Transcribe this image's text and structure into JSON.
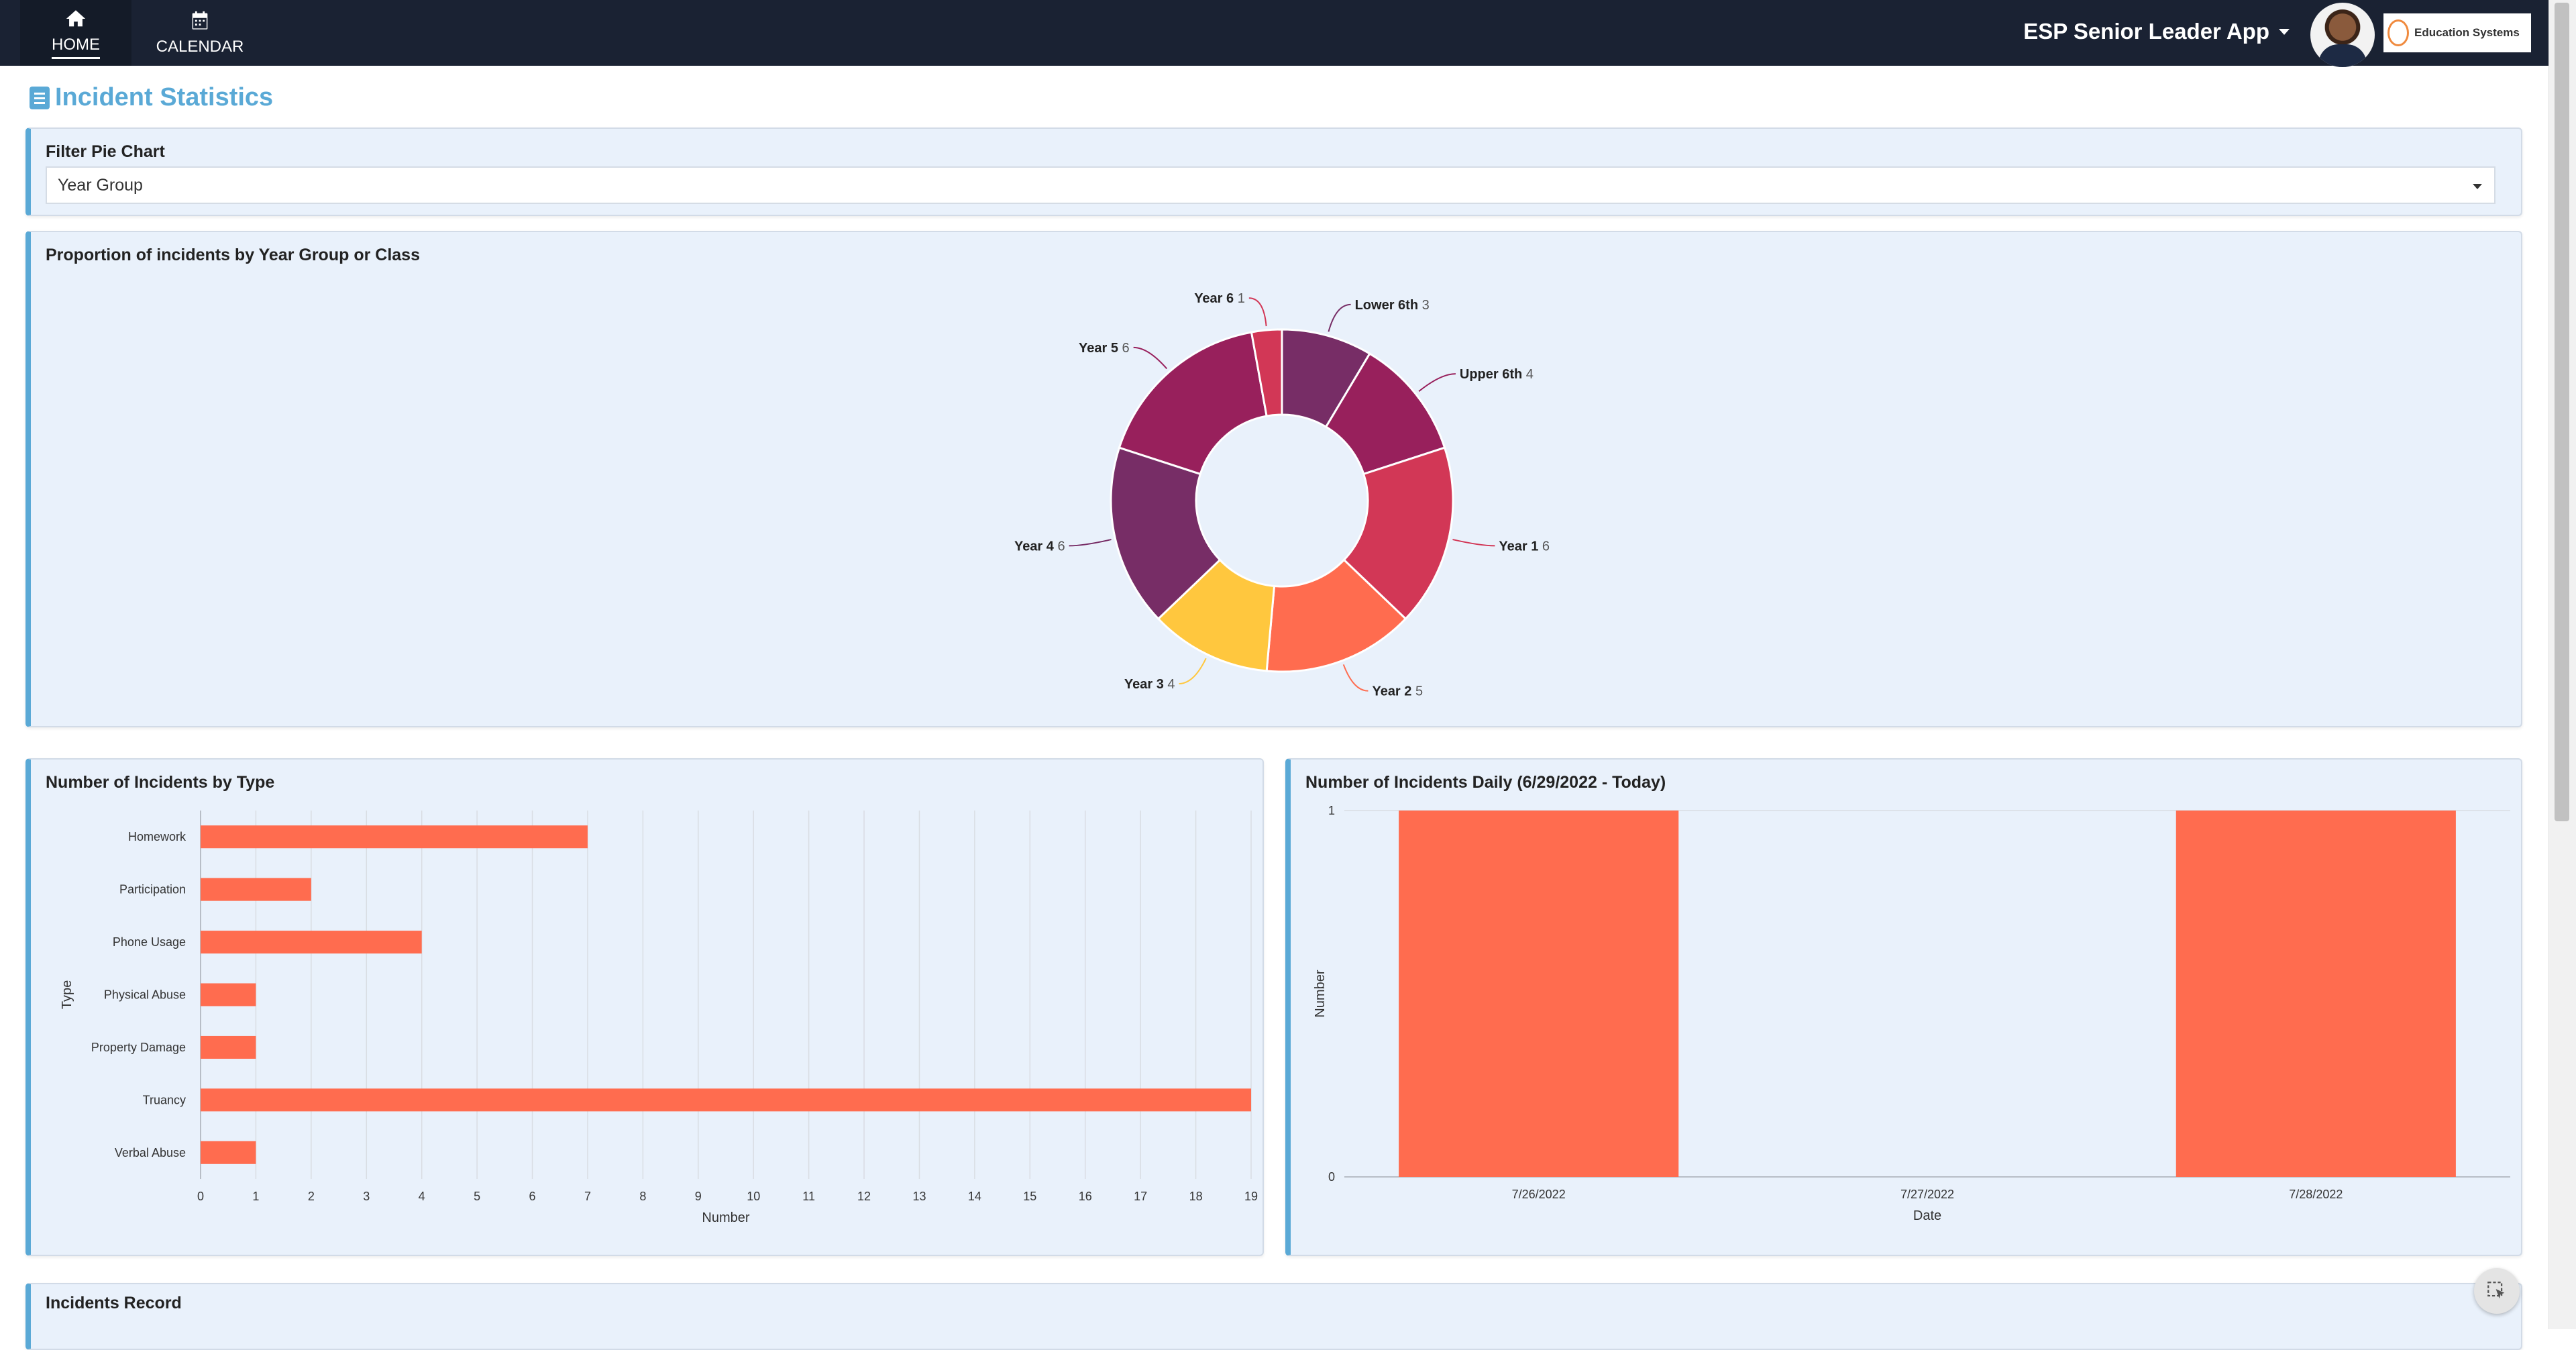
{
  "nav": {
    "items": [
      {
        "label": "HOME",
        "icon": "home-icon"
      },
      {
        "label": "CALENDAR",
        "icon": "calendar-icon"
      }
    ],
    "app_name": "ESP Senior Leader App",
    "logo_text": "Education Systems"
  },
  "page": {
    "title": "Incident Statistics"
  },
  "filter": {
    "title": "Filter Pie Chart",
    "selected": "Year Group"
  },
  "pie_panel": {
    "title": "Proportion of incidents by Year Group or Class"
  },
  "type_panel": {
    "title": "Number of Incidents by Type"
  },
  "daily_panel": {
    "title": "Number of Incidents Daily (6/29/2022 - Today)"
  },
  "record_panel": {
    "title": "Incidents Record"
  },
  "colors": {
    "accent": "#5aa9d6",
    "bar": "#ff6c4f",
    "nav_bg": "#1a2233"
  },
  "chart_data": [
    {
      "type": "pie",
      "title": "Proportion of incidents by Year Group or Class",
      "donut": true,
      "slices": [
        {
          "label": "Lower 6th",
          "value": 3,
          "color": "#772d66"
        },
        {
          "label": "Upper 6th",
          "value": 4,
          "color": "#98205c"
        },
        {
          "label": "Year 1",
          "value": 6,
          "color": "#d23756"
        },
        {
          "label": "Year 2",
          "value": 5,
          "color": "#ff6c4f"
        },
        {
          "label": "Year 3",
          "value": 4,
          "color": "#ffc73e"
        },
        {
          "label": "Year 4",
          "value": 6,
          "color": "#772d66"
        },
        {
          "label": "Year 5",
          "value": 6,
          "color": "#98205c"
        },
        {
          "label": "Year 6",
          "value": 1,
          "color": "#d23756"
        }
      ]
    },
    {
      "type": "bar",
      "orientation": "horizontal",
      "title": "Number of Incidents by Type",
      "categories": [
        "Homework",
        "Participation",
        "Phone Usage",
        "Physical Abuse",
        "Property Damage",
        "Truancy",
        "Verbal Abuse"
      ],
      "values": [
        7,
        2,
        4,
        1,
        1,
        19,
        1
      ],
      "xlabel": "Number",
      "ylabel": "Type",
      "xlim": [
        0,
        19
      ],
      "xticks": [
        "0",
        "1",
        "2",
        "3",
        "4",
        "5",
        "6",
        "7",
        "8",
        "9",
        "10",
        "11",
        "12",
        "13",
        "14",
        "15",
        "16",
        "17",
        "18",
        "19"
      ],
      "grid": true
    },
    {
      "type": "bar",
      "title": "Number of Incidents Daily (6/29/2022 - Today)",
      "categories": [
        "7/26/2022",
        "7/27/2022",
        "7/28/2022"
      ],
      "values": [
        1,
        0,
        1
      ],
      "xlabel": "Date",
      "ylabel": "Number",
      "ylim": [
        0,
        1
      ],
      "yticks": [
        "0",
        "1"
      ]
    }
  ]
}
